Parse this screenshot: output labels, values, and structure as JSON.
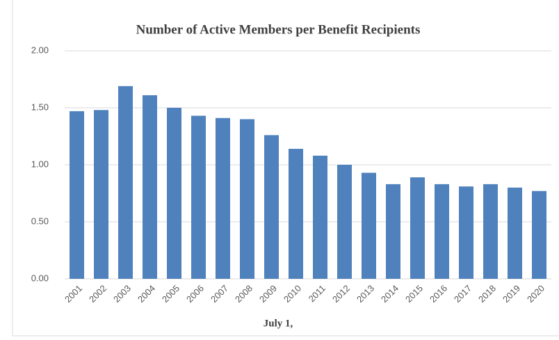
{
  "chart_data": {
    "type": "bar",
    "title": "Number of Active Members per Benefit Recipients",
    "x_label": "July 1,",
    "categories": [
      "2001",
      "2002",
      "2003",
      "2004",
      "2005",
      "2006",
      "2007",
      "2008",
      "2009",
      "2010",
      "2011",
      "2012",
      "2013",
      "2014",
      "2015",
      "2016",
      "2017",
      "2018",
      "2019",
      "2020"
    ],
    "values": [
      1.47,
      1.48,
      1.69,
      1.61,
      1.5,
      1.43,
      1.41,
      1.4,
      1.26,
      1.14,
      1.08,
      1.0,
      0.93,
      0.83,
      0.89,
      0.83,
      0.81,
      0.83,
      0.8,
      0.77
    ],
    "color": "#4f81bd",
    "ylim": [
      0,
      2
    ],
    "yticks": [
      {
        "value": 0,
        "label": "0.00"
      },
      {
        "value": 0.5,
        "label": "0.50"
      },
      {
        "value": 1,
        "label": "1.00"
      },
      {
        "value": 1.5,
        "label": "1.50"
      },
      {
        "value": 2,
        "label": "2.00"
      }
    ],
    "grid": true
  }
}
